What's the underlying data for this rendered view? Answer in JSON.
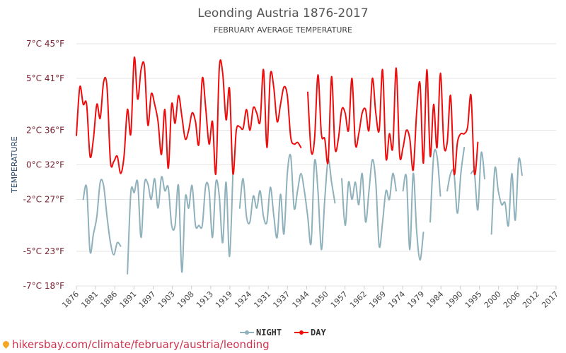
{
  "chart_data": {
    "type": "line",
    "title": "Leonding Austria 1876-2017",
    "subtitle": "FEBRUARY AVERAGE TEMPERATURE",
    "ylabel": "TEMPERATURE",
    "ylim": [
      -7,
      7
    ],
    "xlim": [
      1876,
      2017
    ],
    "y_ticks": [
      {
        "value": 7,
        "label": "7°C 45°F"
      },
      {
        "value": 5,
        "label": "5°C 41°F"
      },
      {
        "value": 2,
        "label": "2°C 36°F"
      },
      {
        "value": 0,
        "label": "0°C 32°F"
      },
      {
        "value": -2,
        "label": "-2°C 27°F"
      },
      {
        "value": -5,
        "label": "-5°C 23°F"
      },
      {
        "value": -7,
        "label": "-7°C 18°F"
      }
    ],
    "x_ticks": [
      "1876",
      "1881",
      "1886",
      "1891",
      "1897",
      "1903",
      "1908",
      "1913",
      "1919",
      "1924",
      "1931",
      "1937",
      "1944",
      "1950",
      "1957",
      "1962",
      "1969",
      "1974",
      "1979",
      "1984",
      "1990",
      "1995",
      "2000",
      "2006",
      "2012",
      "2017"
    ],
    "grid": true,
    "legend_position": "bottom-center",
    "series": [
      {
        "name": "NIGHT",
        "color": "#8fb1bc",
        "points": [
          [
            1878,
            -2
          ],
          [
            1879,
            -1.3
          ],
          [
            1880,
            -5
          ],
          [
            1881,
            -4
          ],
          [
            1882,
            -3
          ],
          [
            1883,
            -1
          ],
          [
            1884,
            -1.2
          ],
          [
            1885,
            -3
          ],
          [
            1886,
            -4.5
          ],
          [
            1887,
            -5.2
          ],
          [
            1888,
            -4.5
          ],
          [
            1889,
            -4.7
          ],
          [
            1891,
            -6.3
          ],
          [
            1892,
            -1.6
          ],
          [
            1893,
            -1.6
          ],
          [
            1894,
            -1
          ],
          [
            1895,
            -4.2
          ],
          [
            1896,
            -1.1
          ],
          [
            1897,
            -1.1
          ],
          [
            1898,
            -2
          ],
          [
            1899,
            -0.8
          ],
          [
            1900,
            -2.5
          ],
          [
            1901,
            -0.7
          ],
          [
            1902,
            -1.5
          ],
          [
            1903,
            -1.3
          ],
          [
            1904,
            -3.5
          ],
          [
            1905,
            -3.5
          ],
          [
            1906,
            -1.2
          ],
          [
            1907,
            -6.2
          ],
          [
            1908,
            -1.9
          ],
          [
            1909,
            -2.5
          ],
          [
            1910,
            -1.2
          ],
          [
            1911,
            -3.5
          ],
          [
            1912,
            -3.5
          ],
          [
            1913,
            -3.5
          ],
          [
            1914,
            -1.2
          ],
          [
            1915,
            -1.5
          ],
          [
            1916,
            -4.2
          ],
          [
            1917,
            -1
          ],
          [
            1918,
            -1.8
          ],
          [
            1919,
            -4.5
          ],
          [
            1920,
            -1
          ],
          [
            1921,
            -5.3
          ],
          [
            1922,
            -0.5
          ],
          [
            1924,
            -2.5
          ],
          [
            1925,
            -0.8
          ],
          [
            1926,
            -3
          ],
          [
            1927,
            -3.3
          ],
          [
            1928,
            -1.8
          ],
          [
            1929,
            -2.5
          ],
          [
            1930,
            -1.5
          ],
          [
            1931,
            -3
          ],
          [
            1932,
            -3.3
          ],
          [
            1933,
            -1.3
          ],
          [
            1934,
            -2.9
          ],
          [
            1935,
            -4.2
          ],
          [
            1936,
            -1.7
          ],
          [
            1937,
            -4
          ],
          [
            1938,
            -0.5
          ],
          [
            1939,
            0.5
          ],
          [
            1940,
            -2.5
          ],
          [
            1941,
            -1.5
          ],
          [
            1942,
            -0.5
          ],
          [
            1943,
            -1.5
          ],
          [
            1944,
            -3
          ],
          [
            1945,
            -4.5
          ],
          [
            1946,
            0.2
          ],
          [
            1947,
            -1.5
          ],
          [
            1948,
            -4.9
          ],
          [
            1949,
            -2
          ],
          [
            1950,
            0.3
          ],
          [
            1951,
            -1
          ],
          [
            1952,
            -2.2
          ],
          [
            1954,
            -0.8
          ],
          [
            1955,
            -3.5
          ],
          [
            1956,
            -1
          ],
          [
            1957,
            -2
          ],
          [
            1958,
            -1
          ],
          [
            1959,
            -2.3
          ],
          [
            1960,
            -0.5
          ],
          [
            1961,
            -3.3
          ],
          [
            1962,
            -1.5
          ],
          [
            1963,
            0.3
          ],
          [
            1964,
            -1
          ],
          [
            1965,
            -4.7
          ],
          [
            1966,
            -3.3
          ],
          [
            1967,
            -1.5
          ],
          [
            1968,
            -2
          ],
          [
            1969,
            -0.5
          ],
          [
            1970,
            -1.5
          ],
          [
            1972,
            -1.5
          ],
          [
            1973,
            -0.7
          ],
          [
            1974,
            -4.9
          ],
          [
            1975,
            -0.5
          ],
          [
            1976,
            -3.8
          ],
          [
            1977,
            -5.5
          ],
          [
            1978,
            -3.9
          ],
          [
            1980,
            -3.3
          ],
          [
            1981,
            0.5
          ],
          [
            1982,
            0.5
          ],
          [
            1983,
            -1.8
          ],
          [
            1985,
            -1.5
          ],
          [
            1986,
            -0.5
          ],
          [
            1987,
            -0.5
          ],
          [
            1988,
            -2.8
          ],
          [
            1989,
            -0.5
          ],
          [
            1990,
            1
          ],
          [
            1992,
            -0.5
          ],
          [
            1993,
            -0.5
          ],
          [
            1994,
            -2.6
          ],
          [
            1995,
            0.7
          ],
          [
            1996,
            -0.8
          ],
          [
            1998,
            -4
          ],
          [
            1999,
            -0.2
          ],
          [
            2000,
            -1.5
          ],
          [
            2001,
            -2.3
          ],
          [
            2002,
            -2.2
          ],
          [
            2003,
            -3.5
          ],
          [
            2004,
            -0.5
          ],
          [
            2005,
            -3.2
          ],
          [
            2006,
            0.3
          ],
          [
            2007,
            -0.6
          ]
        ]
      },
      {
        "name": "DAY",
        "color": "#ee0d0d",
        "points": [
          [
            1876,
            1.7
          ],
          [
            1877,
            4.5
          ],
          [
            1878,
            3.5
          ],
          [
            1879,
            3.5
          ],
          [
            1880,
            0.5
          ],
          [
            1881,
            1.5
          ],
          [
            1882,
            3.5
          ],
          [
            1883,
            2.7
          ],
          [
            1884,
            4.8
          ],
          [
            1885,
            4.5
          ],
          [
            1886,
            0.2
          ],
          [
            1887,
            0.2
          ],
          [
            1888,
            0.5
          ],
          [
            1889,
            -0.5
          ],
          [
            1890,
            0.5
          ],
          [
            1891,
            3.2
          ],
          [
            1892,
            1.8
          ],
          [
            1893,
            6.2
          ],
          [
            1894,
            3.8
          ],
          [
            1895,
            5.5
          ],
          [
            1896,
            5.7
          ],
          [
            1897,
            2.3
          ],
          [
            1898,
            4.1
          ],
          [
            1899,
            3.5
          ],
          [
            1900,
            2.5
          ],
          [
            1901,
            0.6
          ],
          [
            1902,
            3.2
          ],
          [
            1903,
            -0.2
          ],
          [
            1904,
            3.5
          ],
          [
            1905,
            2.4
          ],
          [
            1906,
            4.0
          ],
          [
            1907,
            2.8
          ],
          [
            1908,
            1.5
          ],
          [
            1909,
            2.0
          ],
          [
            1910,
            3.0
          ],
          [
            1911,
            2.5
          ],
          [
            1912,
            1.2
          ],
          [
            1913,
            5.0
          ],
          [
            1914,
            3.3
          ],
          [
            1915,
            1.2
          ],
          [
            1916,
            2.5
          ],
          [
            1917,
            -0.5
          ],
          [
            1918,
            5.6
          ],
          [
            1919,
            5.3
          ],
          [
            1920,
            2.6
          ],
          [
            1921,
            4.4
          ],
          [
            1922,
            -0.5
          ],
          [
            1923,
            2.0
          ],
          [
            1924,
            2.2
          ],
          [
            1925,
            2.1
          ],
          [
            1926,
            3.2
          ],
          [
            1927,
            2.0
          ],
          [
            1928,
            3.3
          ],
          [
            1929,
            3.0
          ],
          [
            1930,
            2.5
          ],
          [
            1931,
            5.5
          ],
          [
            1932,
            1.0
          ],
          [
            1933,
            5.2
          ],
          [
            1934,
            4.5
          ],
          [
            1935,
            2.5
          ],
          [
            1936,
            3.5
          ],
          [
            1937,
            4.5
          ],
          [
            1938,
            4.0
          ],
          [
            1939,
            1.6
          ],
          [
            1940,
            1.2
          ],
          [
            1941,
            1.3
          ],
          [
            1942,
            1.0
          ],
          [
            1944,
            4.2
          ],
          [
            1945,
            0.8
          ],
          [
            1946,
            1.5
          ],
          [
            1947,
            5.2
          ],
          [
            1948,
            1.8
          ],
          [
            1949,
            1.5
          ],
          [
            1950,
            0.2
          ],
          [
            1951,
            5.1
          ],
          [
            1952,
            1.0
          ],
          [
            1953,
            1.5
          ],
          [
            1954,
            3.2
          ],
          [
            1955,
            3.0
          ],
          [
            1956,
            2.0
          ],
          [
            1957,
            5.0
          ],
          [
            1958,
            1.2
          ],
          [
            1959,
            1.8
          ],
          [
            1960,
            3.0
          ],
          [
            1961,
            3.2
          ],
          [
            1962,
            2.0
          ],
          [
            1963,
            5.0
          ],
          [
            1964,
            3.0
          ],
          [
            1965,
            2.0
          ],
          [
            1966,
            5.5
          ],
          [
            1967,
            0.4
          ],
          [
            1968,
            1.8
          ],
          [
            1969,
            1.0
          ],
          [
            1970,
            5.6
          ],
          [
            1971,
            0.6
          ],
          [
            1972,
            1.0
          ],
          [
            1973,
            2.0
          ],
          [
            1974,
            1.5
          ],
          [
            1975,
            -0.3
          ],
          [
            1976,
            3.0
          ],
          [
            1977,
            4.7
          ],
          [
            1978,
            0.1
          ],
          [
            1979,
            5.5
          ],
          [
            1980,
            0.5
          ],
          [
            1981,
            3.5
          ],
          [
            1982,
            1.0
          ],
          [
            1983,
            5.3
          ],
          [
            1984,
            1.2
          ],
          [
            1985,
            1.3
          ],
          [
            1986,
            4.0
          ],
          [
            1987,
            -0.5
          ],
          [
            1988,
            1.3
          ],
          [
            1989,
            1.8
          ],
          [
            1990,
            1.8
          ],
          [
            1991,
            2.2
          ],
          [
            1992,
            4.0
          ],
          [
            1993,
            -0.5
          ],
          [
            1994,
            1.3
          ]
        ]
      }
    ]
  },
  "legend": {
    "night_label": "NIGHT",
    "day_label": "DAY"
  },
  "footer": {
    "text": "hikersbay.com/climate/february/austria/leonding"
  }
}
